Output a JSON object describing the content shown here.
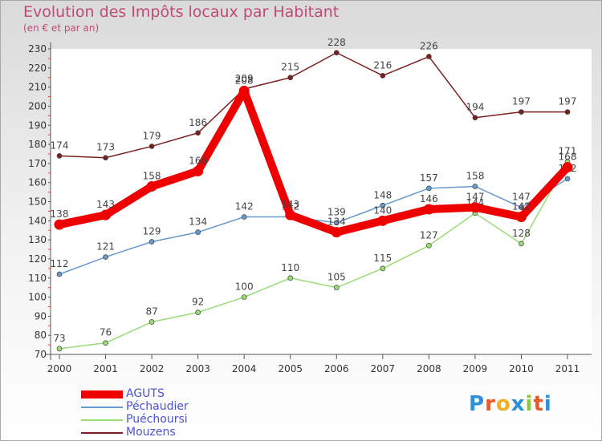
{
  "title": "Evolution des Impôts locaux par Habitant",
  "subtitle": "(en € et par an)",
  "logo": {
    "text": "Proxiti",
    "letter_colors": [
      "#2f8fd8",
      "#e85a2a",
      "#f0b020",
      "#2f8fd8",
      "#8bc83a",
      "#e85a2a",
      "#2f8fd8"
    ]
  },
  "chart_data": {
    "type": "line",
    "x": [
      "2000",
      "2001",
      "2002",
      "2003",
      "2004",
      "2005",
      "2006",
      "2007",
      "2008",
      "2009",
      "2010",
      "2011"
    ],
    "ylim": [
      70,
      230
    ],
    "yticks": [
      70,
      80,
      90,
      100,
      110,
      120,
      130,
      140,
      150,
      160,
      170,
      180,
      190,
      200,
      210,
      220,
      230
    ],
    "grid": false,
    "legend_position": "bottom-left",
    "series": [
      {
        "name": "Mouzens",
        "color": "#7a2020",
        "values": [
          174,
          173,
          179,
          186,
          209,
          215,
          228,
          216,
          226,
          194,
          197,
          197
        ]
      },
      {
        "name": "Puéchoursi",
        "color": "#99dd77",
        "values": [
          73,
          76,
          87,
          92,
          100,
          110,
          105,
          115,
          127,
          144,
          128,
          171
        ]
      },
      {
        "name": "Péchaudier",
        "color": "#6699cc",
        "values": [
          112,
          121,
          129,
          134,
          142,
          142,
          139,
          148,
          157,
          158,
          147,
          162
        ]
      },
      {
        "name": "AGUTS",
        "color": "#ee0000",
        "values": [
          138,
          143,
          158,
          166,
          208,
          143,
          134,
          140,
          146,
          147,
          142,
          168
        ]
      }
    ],
    "legend": [
      "AGUTS",
      "Péchaudier",
      "Puéchoursi",
      "Mouzens"
    ]
  }
}
